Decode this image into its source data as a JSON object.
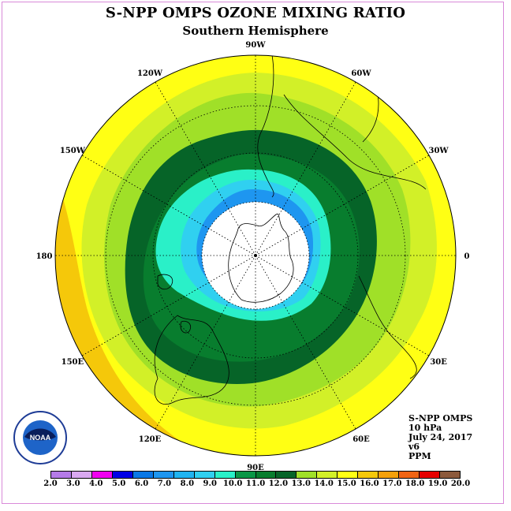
{
  "title": "S-NPP OMPS OZONE MIXING RATIO",
  "subtitle": "Southern Hemisphere",
  "longitude_labels": [
    {
      "text": "90W",
      "lon": -90
    },
    {
      "text": "60W",
      "lon": -60
    },
    {
      "text": "30W",
      "lon": -30
    },
    {
      "text": "0",
      "lon": 0
    },
    {
      "text": "30E",
      "lon": 30
    },
    {
      "text": "60E",
      "lon": 60
    },
    {
      "text": "90E",
      "lon": 90
    },
    {
      "text": "120E",
      "lon": 120
    },
    {
      "text": "150E",
      "lon": 150
    },
    {
      "text": "180",
      "lon": 180
    },
    {
      "text": "150W",
      "lon": -150
    },
    {
      "text": "120W",
      "lon": -120
    }
  ],
  "info": {
    "instrument": "S-NPP OMPS",
    "level": "10 hPa",
    "date": "July 24, 2017",
    "version": "v6",
    "units": "PPM"
  },
  "colorbar": {
    "ticks": [
      "2.0",
      "3.0",
      "4.0",
      "5.0",
      "6.0",
      "7.0",
      "8.0",
      "9.0",
      "10.0",
      "11.0",
      "12.0",
      "13.0",
      "14.0",
      "15.0",
      "16.0",
      "17.0",
      "18.0",
      "19.0",
      "20.0"
    ],
    "colors": [
      "#b57be8",
      "#d9a8f0",
      "#f000f0",
      "#0000e6",
      "#0a78e6",
      "#1e96f0",
      "#20b4f0",
      "#30d0f0",
      "#2af0c8",
      "#0a9646",
      "#087d2e",
      "#066428",
      "#a0e028",
      "#d2f028",
      "#ffff14",
      "#f5c80a",
      "#f5a00a",
      "#f06414",
      "#e60000",
      "#8c5a3c"
    ]
  },
  "logo": {
    "name": "NOAA"
  },
  "map": {
    "projection": "south-polar-stereographic",
    "colors": {
      "ocean_outer": "#f5c80a",
      "yellow": "#ffff14",
      "lightgreen": "#d2f028",
      "green1": "#a0e028",
      "darkgreen": "#066428",
      "green": "#087d2e",
      "cyan": "#2af0c8",
      "lightblue": "#30d0f0",
      "blue": "#1e96f0",
      "nodata": "#ffffff"
    }
  }
}
